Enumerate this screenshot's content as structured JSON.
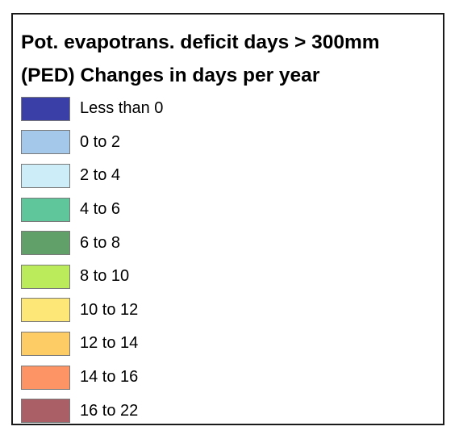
{
  "legend": {
    "title_line1": "Pot. evapotrans. deficit days > 300mm",
    "title_line2": "(PED) Changes in days per year",
    "items": [
      {
        "label": "Less than 0",
        "color": "#3a3fa8"
      },
      {
        "label": "0 to 2",
        "color": "#a3c8ea"
      },
      {
        "label": "2 to 4",
        "color": "#cdeef8"
      },
      {
        "label": "4 to 6",
        "color": "#5fc69b"
      },
      {
        "label": "6 to 8",
        "color": "#62a06a"
      },
      {
        "label": "8 to 10",
        "color": "#bbeb5a"
      },
      {
        "label": "10 to 12",
        "color": "#fde776"
      },
      {
        "label": "12 to 14",
        "color": "#fdcc65"
      },
      {
        "label": "14 to 16",
        "color": "#fd9466"
      },
      {
        "label": "16 to 22",
        "color": "#aa5f67"
      }
    ]
  }
}
